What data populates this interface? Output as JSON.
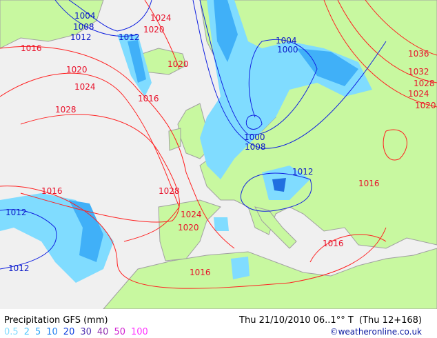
{
  "map": {
    "colors": {
      "sea": "#f0f0f0",
      "land": "#c8f8a0",
      "border": "#a0a0a0",
      "high_isobar": "#ff2020",
      "low_isobar": "#1020e0",
      "precip_light": "#80dcff",
      "precip_mid": "#40b0f8",
      "precip_heavy": "#2070e0"
    },
    "isobar_labels": {
      "red": [
        "1024",
        "1020",
        "1016",
        "1020",
        "1024",
        "1028",
        "1016",
        "1020",
        "1036",
        "1032",
        "1028",
        "1024",
        "1020",
        "1016",
        "1028",
        "1016",
        "1024",
        "1020",
        "1016",
        "1016"
      ],
      "blue": [
        "1004",
        "1008",
        "1012",
        "1012",
        "1004",
        "1000",
        "1000",
        "1008",
        "1012",
        "1012",
        "1012"
      ]
    }
  },
  "legend": {
    "title": "Precipitation GFS (mm)",
    "scale": [
      {
        "value": "0.5",
        "color": "#80dcff"
      },
      {
        "value": "2",
        "color": "#50c8ff"
      },
      {
        "value": "5",
        "color": "#30a8f8"
      },
      {
        "value": "10",
        "color": "#2080f0"
      },
      {
        "value": "20",
        "color": "#1040e0"
      },
      {
        "value": "30",
        "color": "#5030b0"
      },
      {
        "value": "40",
        "color": "#9030b0"
      },
      {
        "value": "50",
        "color": "#d020d0"
      },
      {
        "value": "100",
        "color": "#ff30ff"
      }
    ],
    "valid_time": "Thu 21/10/2010 06..1°° T  (Thu 12+168)",
    "credit": "©weatheronline.co.uk"
  }
}
